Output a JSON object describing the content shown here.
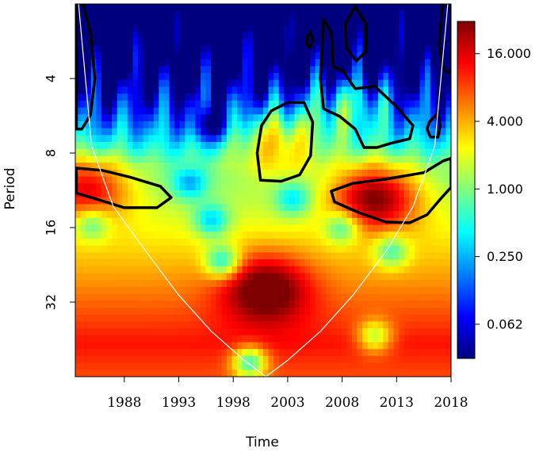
{
  "chart_data": {
    "type": "heatmap",
    "title": "",
    "subtitle": "",
    "xlabel": "Time",
    "ylabel": "Period",
    "xlim": [
      1983.5,
      2018
    ],
    "ylim": [
      2,
      64
    ],
    "y_scale": "log2",
    "y_reversed": true,
    "x_ticks": [
      {
        "value": 1988,
        "label": "1988"
      },
      {
        "value": 1993,
        "label": "1993"
      },
      {
        "value": 1998,
        "label": "1998"
      },
      {
        "value": 2003,
        "label": "2003"
      },
      {
        "value": 2008,
        "label": "2008"
      },
      {
        "value": 2013,
        "label": "2013"
      },
      {
        "value": 2018,
        "label": "2018"
      }
    ],
    "y_ticks": [
      {
        "value": 4,
        "label": "4"
      },
      {
        "value": 8,
        "label": "8"
      },
      {
        "value": 16,
        "label": "16"
      },
      {
        "value": 32,
        "label": "32"
      }
    ],
    "colorbar": {
      "scale": "log",
      "range": [
        0.031,
        31
      ],
      "colors": [
        "#00007f",
        "#0000ff",
        "#007fff",
        "#00ffff",
        "#7fff7f",
        "#ffff00",
        "#ff7f00",
        "#ff0000",
        "#7f0000"
      ],
      "ticks": [
        {
          "value": 0.0625,
          "label": "0.062"
        },
        {
          "value": 0.25,
          "label": "0.250"
        },
        {
          "value": 1,
          "label": "1.000"
        },
        {
          "value": 4,
          "label": "4.000"
        },
        {
          "value": 16,
          "label": "16.000"
        }
      ]
    },
    "hotspots": [
      {
        "time": 1984.5,
        "period": 11,
        "power": 12
      },
      {
        "time": 2011,
        "period": 12,
        "power": 22
      },
      {
        "time": 2002,
        "period": 7,
        "power": 8
      },
      {
        "time": 2008.5,
        "period": 5,
        "power": 6
      },
      {
        "time": 2001,
        "period": 28,
        "power": 10
      }
    ],
    "significance_contours": [
      [
        [
          1983.6,
          9.2
        ],
        [
          1986,
          9.4
        ],
        [
          1988.5,
          10.0
        ],
        [
          1991.3,
          10.9
        ],
        [
          1992.3,
          12.1
        ],
        [
          1991,
          13.3
        ],
        [
          1988,
          13.3
        ],
        [
          1985.5,
          12.3
        ],
        [
          1983.6,
          11.6
        ]
      ],
      [
        [
          2000.5,
          10.3
        ],
        [
          2000.2,
          8.0
        ],
        [
          2000.6,
          6.2
        ],
        [
          2001.5,
          5.4
        ],
        [
          2003.0,
          5.0
        ],
        [
          2004.5,
          5.0
        ],
        [
          2005.3,
          6.0
        ],
        [
          2005.1,
          8.2
        ],
        [
          2004.1,
          9.8
        ],
        [
          2002.4,
          10.4
        ]
      ],
      [
        [
          2007.0,
          11.4
        ],
        [
          2009.0,
          10.6
        ],
        [
          2012.0,
          10.2
        ],
        [
          2015.5,
          9.6
        ],
        [
          2017.3,
          8.6
        ],
        [
          2018,
          8.4
        ],
        [
          2018,
          11.0
        ],
        [
          2017.0,
          12.3
        ],
        [
          2015.8,
          14.2
        ],
        [
          2014.2,
          15.3
        ],
        [
          2012.0,
          15.2
        ],
        [
          2009.5,
          13.9
        ],
        [
          2007.3,
          12.6
        ]
      ],
      [
        [
          2006.3,
          5.3
        ],
        [
          2006.0,
          4.0
        ],
        [
          2006.3,
          2.3
        ],
        [
          2007.0,
          2.6
        ],
        [
          2007.2,
          3.6
        ],
        [
          2008.0,
          3.7
        ],
        [
          2009.2,
          4.4
        ],
        [
          2011.0,
          4.3
        ],
        [
          2013.0,
          5.2
        ],
        [
          2014.5,
          6.2
        ],
        [
          2014.2,
          7.0
        ],
        [
          2012.5,
          7.3
        ],
        [
          2011.2,
          7.6
        ],
        [
          2010.0,
          7.6
        ],
        [
          2009.2,
          6.4
        ],
        [
          2007.8,
          5.7
        ]
      ],
      [
        [
          2008.3,
          2.4
        ],
        [
          2009.2,
          2.05
        ],
        [
          2010.2,
          2.4
        ],
        [
          2010.2,
          3.1
        ],
        [
          2009.3,
          3.4
        ],
        [
          2008.4,
          3.0
        ]
      ],
      [
        [
          2004.8,
          2.7
        ],
        [
          2005.1,
          2.6
        ],
        [
          2005.3,
          2.8
        ],
        [
          2005.0,
          3.0
        ],
        [
          2004.7,
          2.9
        ]
      ],
      [
        [
          2016.0,
          6.0
        ],
        [
          2016.8,
          5.5
        ],
        [
          2017.0,
          6.2
        ],
        [
          2016.8,
          6.9
        ],
        [
          2016.1,
          6.9
        ],
        [
          2015.8,
          6.4
        ]
      ],
      [
        [
          1983.6,
          2.0
        ],
        [
          1984.2,
          2.0
        ],
        [
          1984.9,
          2.6
        ],
        [
          1985.3,
          4.0
        ],
        [
          1984.9,
          5.6
        ],
        [
          1984.1,
          6.4
        ],
        [
          1983.6,
          6.4
        ]
      ],
      [
        [
          2017.2,
          2.0
        ],
        [
          2018,
          2.0
        ],
        [
          2018,
          3.8
        ],
        [
          2017.3,
          3.7
        ],
        [
          2016.9,
          2.9
        ]
      ]
    ],
    "cone_of_influence": [
      [
        1983.8,
        2.0
      ],
      [
        1985,
        7.5
      ],
      [
        1987,
        13.2
      ],
      [
        1990,
        20
      ],
      [
        1993,
        30
      ],
      [
        1996,
        42
      ],
      [
        1999,
        55
      ],
      [
        2001,
        64
      ],
      [
        2003,
        55
      ],
      [
        2006,
        42
      ],
      [
        2009,
        30
      ],
      [
        2012,
        20
      ],
      [
        2014.5,
        13.2
      ],
      [
        2016.5,
        7.5
      ],
      [
        2017.7,
        2.0
      ]
    ]
  }
}
